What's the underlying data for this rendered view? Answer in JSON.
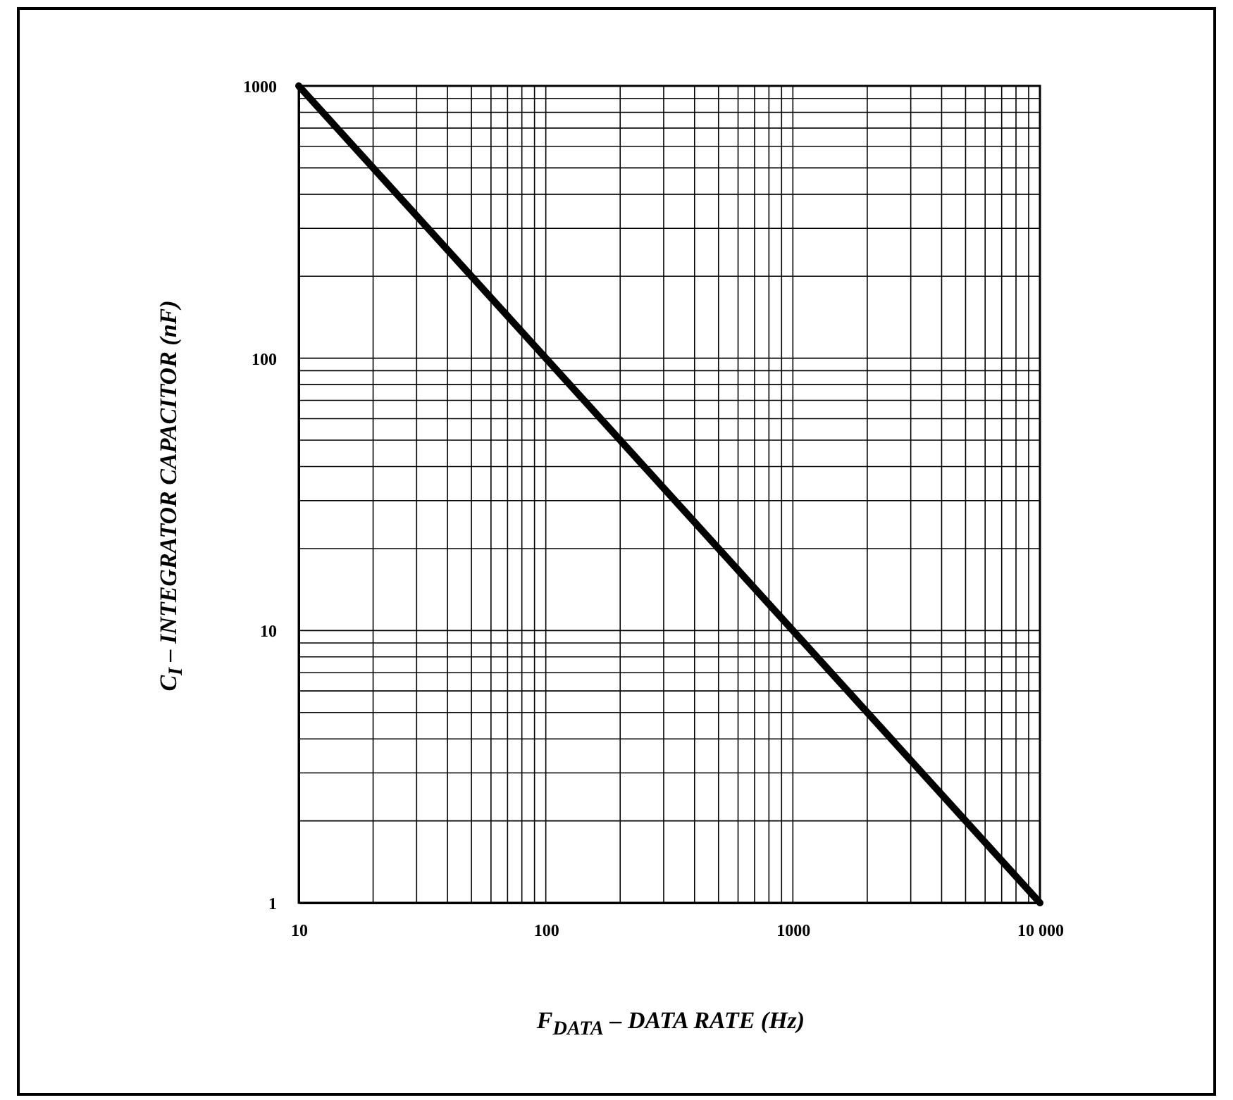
{
  "chart_data": {
    "type": "line",
    "xlabel": "F$_{DATA}$ – DATA RATE (Hz)",
    "ylabel": "C$_{I}$ – INTEGRATOR CAPACITOR (nF)",
    "x": [
      10,
      10000
    ],
    "series": [
      {
        "color": "#000000",
        "values": [
          1000,
          1
        ]
      }
    ],
    "log": "xy",
    "grid": true,
    "marker": "none",
    "line_style": "solid",
    "legend": false,
    "xlim": [
      10,
      10000
    ],
    "xticks": [
      10,
      100,
      1000,
      {
        "value": 10000,
        "label": "10 000"
      }
    ],
    "ylim": [
      1,
      1000
    ],
    "yticks": [
      1,
      10,
      100,
      1000
    ]
  }
}
